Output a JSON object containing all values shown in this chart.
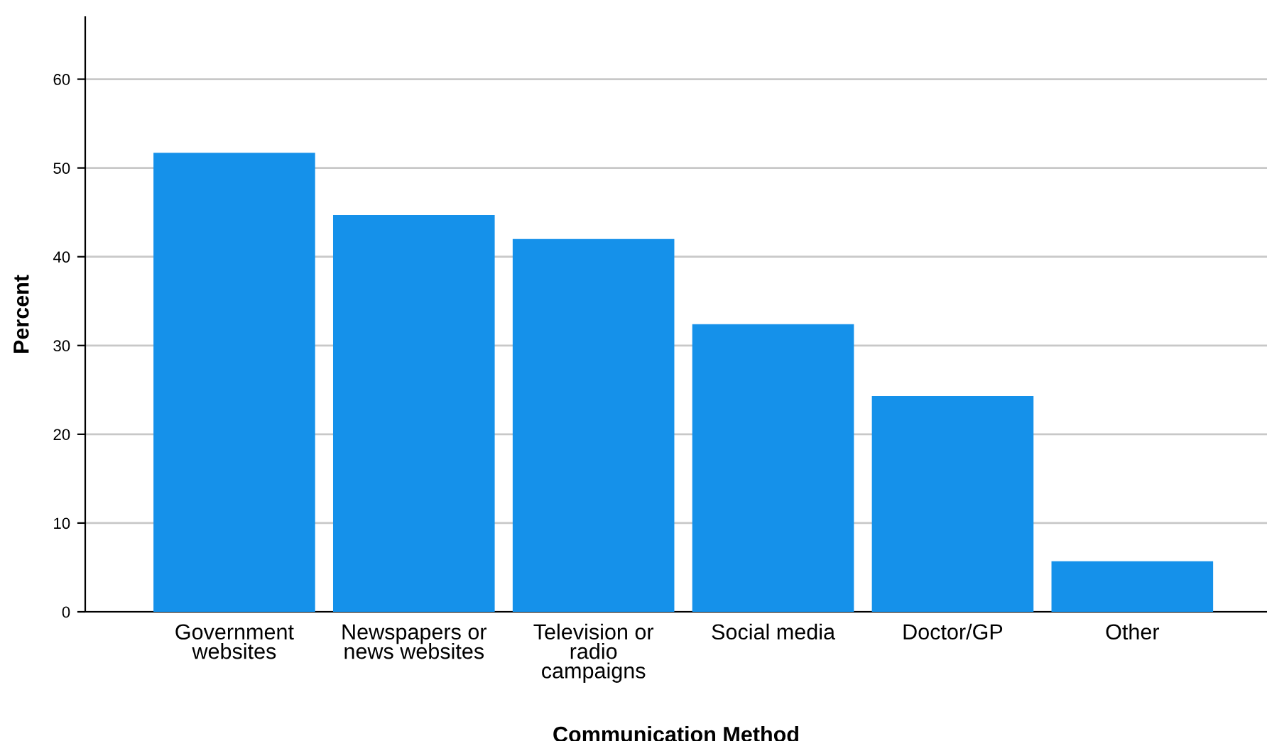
{
  "chart_data": {
    "type": "bar",
    "xlabel": "Communication Method",
    "ylabel": "Percent",
    "categories": [
      "Government\nwebsites",
      "Newspapers or\nnews websites",
      "Television or\nradio\ncampaigns",
      "Social media",
      "Doctor/GP",
      "Other"
    ],
    "values": [
      51.7,
      44.7,
      42.0,
      32.4,
      24.3,
      5.7
    ],
    "color": "#1591ea",
    "ylim": [
      0,
      67
    ],
    "yticks": [
      0,
      10,
      20,
      30,
      40,
      50,
      60
    ],
    "grid": "y"
  }
}
